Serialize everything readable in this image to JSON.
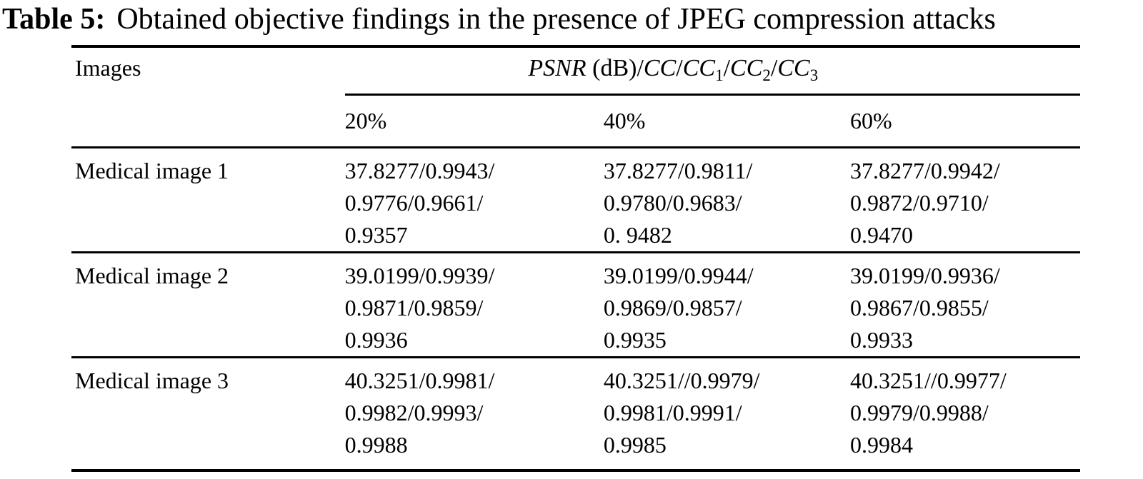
{
  "caption": {
    "label": "Table 5:",
    "text": "Obtained objective findings in the presence of JPEG compression attacks"
  },
  "table": {
    "images_header": "Images",
    "metric_header_segments": [
      {
        "text": "PSNR",
        "style": "italic"
      },
      {
        "text": " (dB)/",
        "style": "roman"
      },
      {
        "text": "CC",
        "style": "italic"
      },
      {
        "text": "/",
        "style": "roman"
      },
      {
        "text": "CC",
        "style": "italic"
      },
      {
        "text": "1",
        "style": "subscript"
      },
      {
        "text": "/",
        "style": "roman"
      },
      {
        "text": "CC",
        "style": "italic"
      },
      {
        "text": "2",
        "style": "subscript"
      },
      {
        "text": "/",
        "style": "roman"
      },
      {
        "text": "CC",
        "style": "italic"
      },
      {
        "text": "3",
        "style": "subscript"
      }
    ],
    "compression_levels": [
      "20%",
      "40%",
      "60%"
    ],
    "rows": [
      {
        "image": "Medical image 1",
        "p20": [
          "37.8277/0.9943/",
          "0.9776/0.9661/",
          "0.9357"
        ],
        "p40": [
          "37.8277/0.9811/",
          "0.9780/0.9683/",
          "0. 9482"
        ],
        "p60": [
          "37.8277/0.9942/",
          "0.9872/0.9710/",
          "0.9470"
        ]
      },
      {
        "image": "Medical image 2",
        "p20": [
          "39.0199/0.9939/",
          "0.9871/0.9859/",
          "0.9936"
        ],
        "p40": [
          "39.0199/0.9944/",
          "0.9869/0.9857/",
          "0.9935"
        ],
        "p60": [
          "39.0199/0.9936/",
          "0.9867/0.9855/",
          "0.9933"
        ]
      },
      {
        "image": "Medical image 3",
        "p20": [
          "40.3251/0.9981/",
          "0.9982/0.9993/",
          "0.9988"
        ],
        "p40": [
          "40.3251//0.9979/",
          "0.9981/0.9991/",
          "0.9985"
        ],
        "p60": [
          "40.3251//0.9977/",
          "0.9979/0.9988/",
          "0.9984"
        ]
      }
    ]
  }
}
